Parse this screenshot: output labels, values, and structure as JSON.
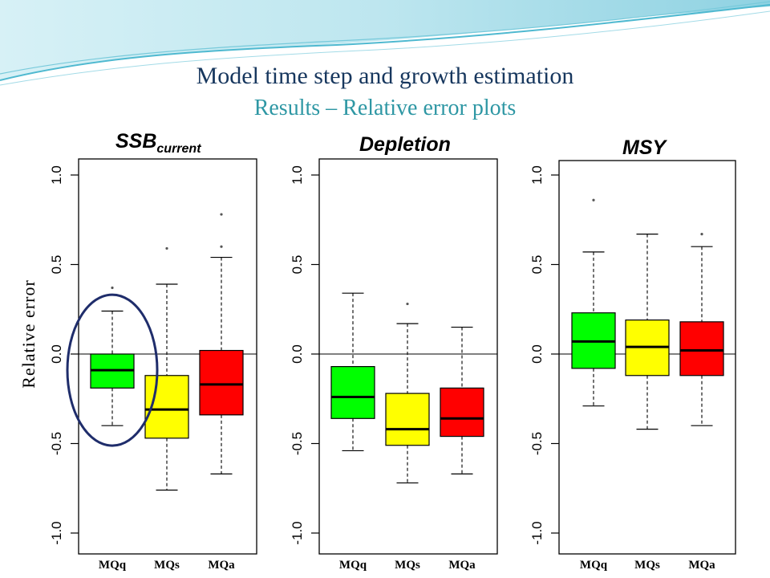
{
  "slide": {
    "title": "Model time step and growth estimation",
    "subtitle": "Results – Relative error plots",
    "y_axis_label": "Relative error"
  },
  "colors": {
    "title": "#17375e",
    "subtitle": "#2e97a4",
    "highlight_circle": "#1f2d6b",
    "MQq": "#00ff00",
    "MQs": "#ffff00",
    "MQa": "#ff0000"
  },
  "chart_data": [
    {
      "type": "boxplot",
      "title": "SSB",
      "title_subscript": "current",
      "ylim": [
        -1.0,
        1.0
      ],
      "yticks": [
        "-1.0",
        "-0.5",
        "0.0",
        "0.5",
        "1.0"
      ],
      "ytick_values": [
        -1.0,
        -0.5,
        0.0,
        0.5,
        1.0
      ],
      "reference_line": 0,
      "categories": [
        "MQq",
        "MQs",
        "MQa"
      ],
      "series": [
        {
          "category": "MQq",
          "color": "#00ff00",
          "whisker_low": -0.4,
          "q1": -0.19,
          "median": -0.09,
          "q3": 0.0,
          "whisker_high": 0.24,
          "outliers": [
            0.37
          ]
        },
        {
          "category": "MQs",
          "color": "#ffff00",
          "whisker_low": -0.76,
          "q1": -0.47,
          "median": -0.31,
          "q3": -0.12,
          "whisker_high": 0.39,
          "outliers": [
            0.59
          ]
        },
        {
          "category": "MQa",
          "color": "#ff0000",
          "whisker_low": -0.67,
          "q1": -0.34,
          "median": -0.17,
          "q3": 0.02,
          "whisker_high": 0.54,
          "outliers": [
            0.6,
            0.78
          ]
        }
      ],
      "annotation": "circle around MQq"
    },
    {
      "type": "boxplot",
      "title": "Depletion",
      "ylim": [
        -1.0,
        1.0
      ],
      "yticks": [
        "-1.0",
        "-0.5",
        "0.0",
        "0.5",
        "1.0"
      ],
      "ytick_values": [
        -1.0,
        -0.5,
        0.0,
        0.5,
        1.0
      ],
      "reference_line": 0,
      "categories": [
        "MQq",
        "MQs",
        "MQa"
      ],
      "series": [
        {
          "category": "MQq",
          "color": "#00ff00",
          "whisker_low": -0.54,
          "q1": -0.36,
          "median": -0.24,
          "q3": -0.07,
          "whisker_high": 0.34,
          "outliers": []
        },
        {
          "category": "MQs",
          "color": "#ffff00",
          "whisker_low": -0.72,
          "q1": -0.51,
          "median": -0.42,
          "q3": -0.22,
          "whisker_high": 0.17,
          "outliers": [
            0.28
          ]
        },
        {
          "category": "MQa",
          "color": "#ff0000",
          "whisker_low": -0.67,
          "q1": -0.46,
          "median": -0.36,
          "q3": -0.19,
          "whisker_high": 0.15,
          "outliers": []
        }
      ]
    },
    {
      "type": "boxplot",
      "title": "MSY",
      "ylim": [
        -1.0,
        1.0
      ],
      "yticks": [
        "-1.0",
        "-0.5",
        "0.0",
        "0.5",
        "1.0"
      ],
      "ytick_values": [
        -1.0,
        -0.5,
        0.0,
        0.5,
        1.0
      ],
      "reference_line": 0,
      "categories": [
        "MQq",
        "MQs",
        "MQa"
      ],
      "series": [
        {
          "category": "MQq",
          "color": "#00ff00",
          "whisker_low": -0.29,
          "q1": -0.08,
          "median": 0.07,
          "q3": 0.23,
          "whisker_high": 0.57,
          "outliers": [
            0.86
          ]
        },
        {
          "category": "MQs",
          "color": "#ffff00",
          "whisker_low": -0.42,
          "q1": -0.12,
          "median": 0.04,
          "q3": 0.19,
          "whisker_high": 0.67,
          "outliers": []
        },
        {
          "category": "MQa",
          "color": "#ff0000",
          "whisker_low": -0.4,
          "q1": -0.12,
          "median": 0.02,
          "q3": 0.18,
          "whisker_high": 0.6,
          "outliers": [
            0.67
          ]
        }
      ]
    }
  ]
}
